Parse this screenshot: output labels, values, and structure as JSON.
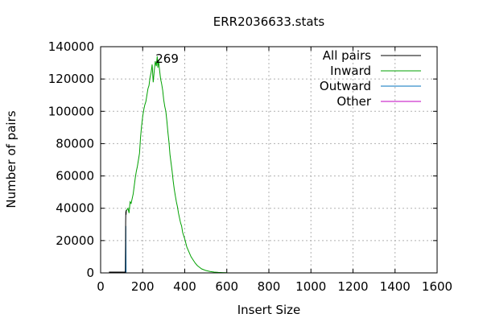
{
  "chart_data": {
    "type": "line",
    "title": "ERR2036633.stats",
    "xlabel": "Insert Size",
    "ylabel": "Number of pairs",
    "xlim": [
      0,
      1600
    ],
    "ylim": [
      0,
      140000
    ],
    "xticks": [
      0,
      200,
      400,
      600,
      800,
      1000,
      1200,
      1400,
      1600
    ],
    "yticks": [
      0,
      20000,
      40000,
      60000,
      80000,
      100000,
      120000,
      140000
    ],
    "grid": true,
    "legend_position": "top-right",
    "annotation": {
      "text": "269",
      "x": 269,
      "y": 134000
    },
    "series": [
      {
        "name": "All pairs",
        "color": "#000000",
        "x": [
          40,
          118,
          119,
          120,
          121,
          122
        ],
        "y": [
          500,
          500,
          31000,
          38000,
          36000,
          39000
        ]
      },
      {
        "name": "Inward",
        "color": "#00a000",
        "x": [
          120,
          125,
          130,
          135,
          140,
          145,
          150,
          155,
          160,
          165,
          170,
          175,
          180,
          185,
          190,
          195,
          200,
          205,
          210,
          215,
          220,
          225,
          230,
          235,
          240,
          245,
          250,
          255,
          260,
          265,
          269,
          272,
          275,
          280,
          285,
          290,
          295,
          300,
          305,
          310,
          315,
          320,
          325,
          330,
          335,
          340,
          345,
          350,
          355,
          360,
          365,
          370,
          375,
          380,
          385,
          390,
          395,
          400,
          410,
          420,
          430,
          440,
          450,
          460,
          470,
          480,
          490,
          500,
          520,
          540,
          560,
          580,
          600
        ],
        "y": [
          38000,
          39000,
          40000,
          37000,
          44000,
          43000,
          46000,
          49000,
          54000,
          59000,
          63000,
          66000,
          70000,
          74000,
          84000,
          91000,
          97000,
          101000,
          104000,
          106000,
          110000,
          114000,
          116000,
          121000,
          124000,
          129000,
          118000,
          125000,
          131000,
          128000,
          134000,
          127000,
          132000,
          126000,
          120000,
          117000,
          113000,
          107000,
          103000,
          100000,
          94000,
          87000,
          81000,
          73000,
          68000,
          63000,
          57000,
          52000,
          48000,
          44000,
          41000,
          37000,
          34000,
          31000,
          29000,
          25000,
          23000,
          21000,
          16000,
          13000,
          10000,
          8000,
          6000,
          4500,
          3500,
          2500,
          2000,
          1500,
          900,
          500,
          300,
          200,
          100
        ]
      },
      {
        "name": "Outward",
        "color": "#0072bd",
        "x": [
          115,
          116,
          117,
          118,
          119,
          120,
          121
        ],
        "y": [
          0,
          500,
          1000,
          2000,
          24000,
          29000,
          0
        ]
      },
      {
        "name": "Other",
        "color": "#c000c0",
        "x": [
          40,
          600
        ],
        "y": [
          0,
          0
        ]
      }
    ]
  }
}
